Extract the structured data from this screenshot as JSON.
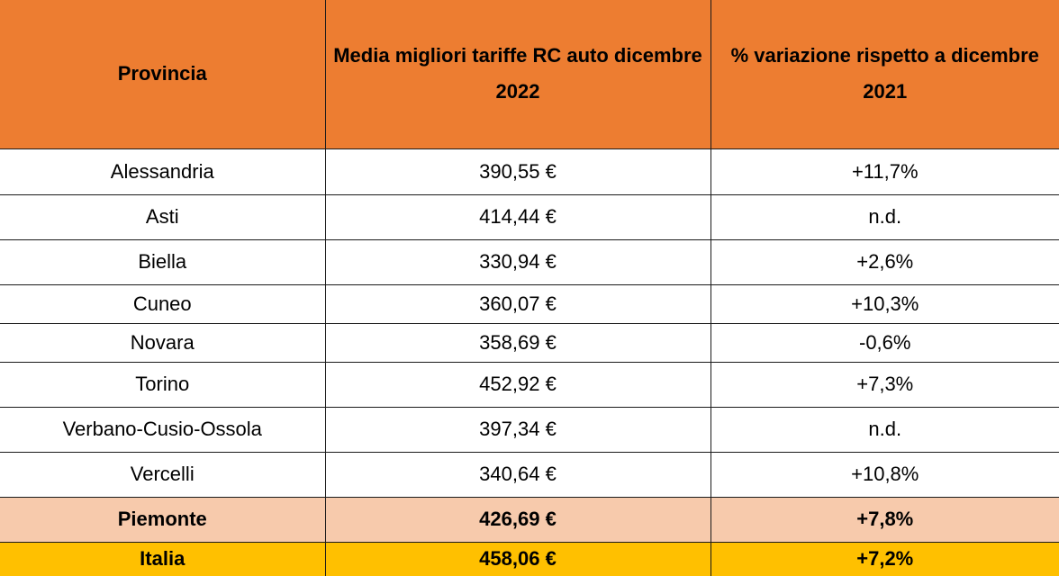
{
  "colors": {
    "header_bg": "#ed7d31",
    "regional_total_bg": "#f7caac",
    "national_total_bg": "#ffc000"
  },
  "table": {
    "headers": [
      "Provincia",
      "Media migliori tariffe RC auto dicembre 2022",
      "% variazione rispetto a dicembre 2021"
    ],
    "rows": [
      {
        "provincia": "Alessandria",
        "media": "390,55 €",
        "variazione": "+11,7%"
      },
      {
        "provincia": "Asti",
        "media": "414,44 €",
        "variazione": "n.d."
      },
      {
        "provincia": "Biella",
        "media": "330,94 €",
        "variazione": "+2,6%"
      },
      {
        "provincia": "Cuneo",
        "media": "360,07 €",
        "variazione": "+10,3%"
      },
      {
        "provincia": "Novara",
        "media": "358,69 €",
        "variazione": "-0,6%"
      },
      {
        "provincia": "Torino",
        "media": "452,92 €",
        "variazione": "+7,3%"
      },
      {
        "provincia": "Verbano-Cusio-Ossola",
        "media": "397,34 €",
        "variazione": "n.d."
      },
      {
        "provincia": "Vercelli",
        "media": "340,64 €",
        "variazione": "+10,8%"
      }
    ],
    "regional_total": {
      "provincia": "Piemonte",
      "media": "426,69 €",
      "variazione": "+7,8%"
    },
    "national_total": {
      "provincia": "Italia",
      "media": "458,06 €",
      "variazione": "+7,2%"
    }
  }
}
